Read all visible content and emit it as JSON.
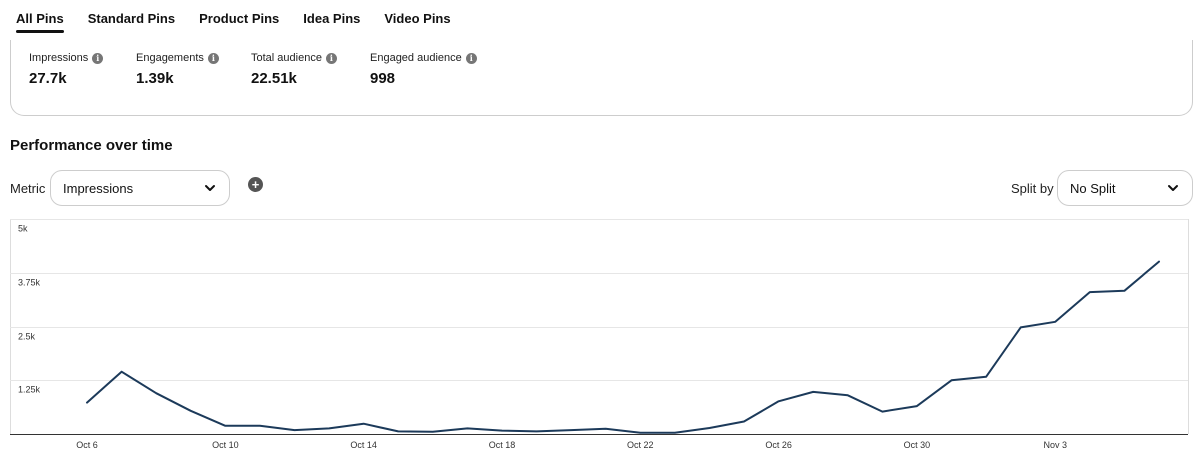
{
  "tabs": [
    {
      "label": "All Pins",
      "active": true
    },
    {
      "label": "Standard Pins",
      "active": false
    },
    {
      "label": "Product Pins",
      "active": false
    },
    {
      "label": "Idea Pins",
      "active": false
    },
    {
      "label": "Video Pins",
      "active": false
    }
  ],
  "summary": {
    "impressions": {
      "label": "Impressions",
      "value": "27.7k"
    },
    "engagements": {
      "label": "Engagements",
      "value": "1.39k"
    },
    "total_audience": {
      "label": "Total audience",
      "value": "22.51k"
    },
    "engaged_audience": {
      "label": "Engaged audience",
      "value": "998"
    }
  },
  "section_title": "Performance over time",
  "controls": {
    "metric_label": "Metric",
    "metric_value": "Impressions",
    "split_label": "Split by",
    "split_value": "No Split"
  },
  "icons": {
    "info": "info-icon",
    "add": "plus-circle-icon",
    "dropdown": "chevron-down-icon"
  },
  "chart_data": {
    "type": "line",
    "title": "",
    "xlabel": "",
    "ylabel": "",
    "ylim": [
      0,
      5000
    ],
    "y_ticks": [
      {
        "value": 1250,
        "label": "1.25k"
      },
      {
        "value": 2500,
        "label": "2.5k"
      },
      {
        "value": 3750,
        "label": "3.75k"
      },
      {
        "value": 5000,
        "label": "5k"
      }
    ],
    "x_tick_labels": [
      "Oct 6",
      "Oct 10",
      "Oct 14",
      "Oct 18",
      "Oct 22",
      "Oct 26",
      "Oct 30",
      "Nov 3"
    ],
    "grid": true,
    "line_color": "#1c3a5a",
    "series": [
      {
        "x": [
          "Oct 6",
          "Oct 7",
          "Oct 8",
          "Oct 9",
          "Oct 10",
          "Oct 11",
          "Oct 12",
          "Oct 13",
          "Oct 14",
          "Oct 15",
          "Oct 16",
          "Oct 17",
          "Oct 18",
          "Oct 19",
          "Oct 20",
          "Oct 21",
          "Oct 22",
          "Oct 23",
          "Oct 24",
          "Oct 25",
          "Oct 26",
          "Oct 27",
          "Oct 28",
          "Oct 29",
          "Oct 30",
          "Oct 31",
          "Nov 1",
          "Nov 2",
          "Nov 3",
          "Nov 4",
          "Nov 5",
          "Nov 6"
        ],
        "values": [
          730,
          1450,
          950,
          540,
          190,
          190,
          90,
          130,
          240,
          60,
          50,
          130,
          80,
          60,
          90,
          120,
          30,
          30,
          140,
          290,
          760,
          980,
          900,
          520,
          650,
          1250,
          1330,
          2480,
          2610,
          3300,
          3330,
          4010
        ]
      }
    ]
  }
}
